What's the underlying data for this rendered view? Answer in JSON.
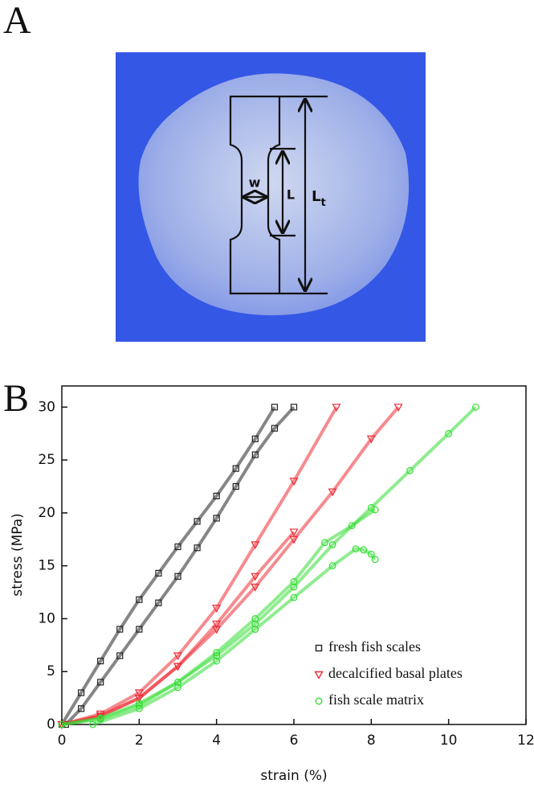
{
  "panels": [
    "A",
    "B"
  ],
  "photo": {
    "width_label": "w",
    "gauge_label": "L",
    "total_label": "L",
    "total_label_sub": "t"
  },
  "chart_data": {
    "type": "scatter",
    "x_label": "strain (%)",
    "y_label": "stress (MPa)",
    "xlim": [
      0,
      12
    ],
    "ylim": [
      0,
      32
    ],
    "xticks": [
      0,
      2,
      4,
      6,
      8,
      10,
      12
    ],
    "yticks": [
      0,
      5,
      10,
      15,
      20,
      25,
      30
    ],
    "legend": "lower right",
    "series": [
      {
        "name": "fresh fish scales",
        "color": "#222222",
        "marker": "square",
        "curves": [
          {
            "x": [
              0,
              0.5,
              1,
              1.5,
              2,
              2.5,
              3,
              3.5,
              4,
              4.5,
              5,
              5.5
            ],
            "values": [
              0,
              3,
              6,
              9,
              11.8,
              14.3,
              16.8,
              19.2,
              21.6,
              24.2,
              27,
              30
            ]
          },
          {
            "x": [
              0.1,
              0.5,
              1,
              1.5,
              2,
              2.5,
              3,
              3.5,
              4,
              4.5,
              5,
              5.5,
              6
            ],
            "values": [
              0,
              1.5,
              4,
              6.5,
              9,
              11.5,
              14,
              16.7,
              19.5,
              22.5,
              25.5,
              28,
              30
            ]
          }
        ]
      },
      {
        "name": "decalcified basal plates",
        "color": "#ee2b33",
        "marker": "triangle",
        "curves": [
          {
            "x": [
              0,
              1,
              2,
              3,
              4,
              5,
              6,
              7.1
            ],
            "values": [
              0,
              1,
              3,
              6.5,
              11,
              17,
              23,
              30
            ]
          },
          {
            "x": [
              0,
              1,
              2,
              3,
              4,
              5,
              6
            ],
            "values": [
              0,
              0.8,
              2.5,
              5.5,
              9.5,
              14,
              18.2
            ]
          },
          {
            "x": [
              0,
              1,
              2,
              3,
              4,
              5,
              6,
              7,
              8,
              8.7
            ],
            "values": [
              0,
              0.8,
              2.5,
              5.5,
              9,
              13,
              17.5,
              22,
              27,
              30
            ]
          }
        ]
      },
      {
        "name": "fish scale matrix",
        "color": "#33dd33",
        "marker": "circle",
        "curves": [
          {
            "x": [
              0,
              1,
              2,
              3,
              4,
              5,
              6,
              7,
              8,
              9,
              10,
              10.7
            ],
            "values": [
              0,
              0.5,
              1.8,
              4,
              6.5,
              9.5,
              13,
              17,
              20.5,
              24,
              27.5,
              30
            ]
          },
          {
            "x": [
              0,
              1,
              2,
              3,
              4,
              5,
              6,
              6.8,
              7.5,
              8.1
            ],
            "values": [
              0,
              0.6,
              2,
              4,
              6.8,
              10,
              13.5,
              17.2,
              18.8,
              20.3
            ]
          },
          {
            "x": [
              0.8,
              2,
              3,
              4,
              5,
              6,
              7,
              7.6,
              7.8,
              8,
              8.1
            ],
            "values": [
              0,
              1.5,
              3.5,
              6,
              9,
              12,
              15,
              16.6,
              16.5,
              16.1,
              15.6
            ]
          }
        ]
      }
    ]
  }
}
